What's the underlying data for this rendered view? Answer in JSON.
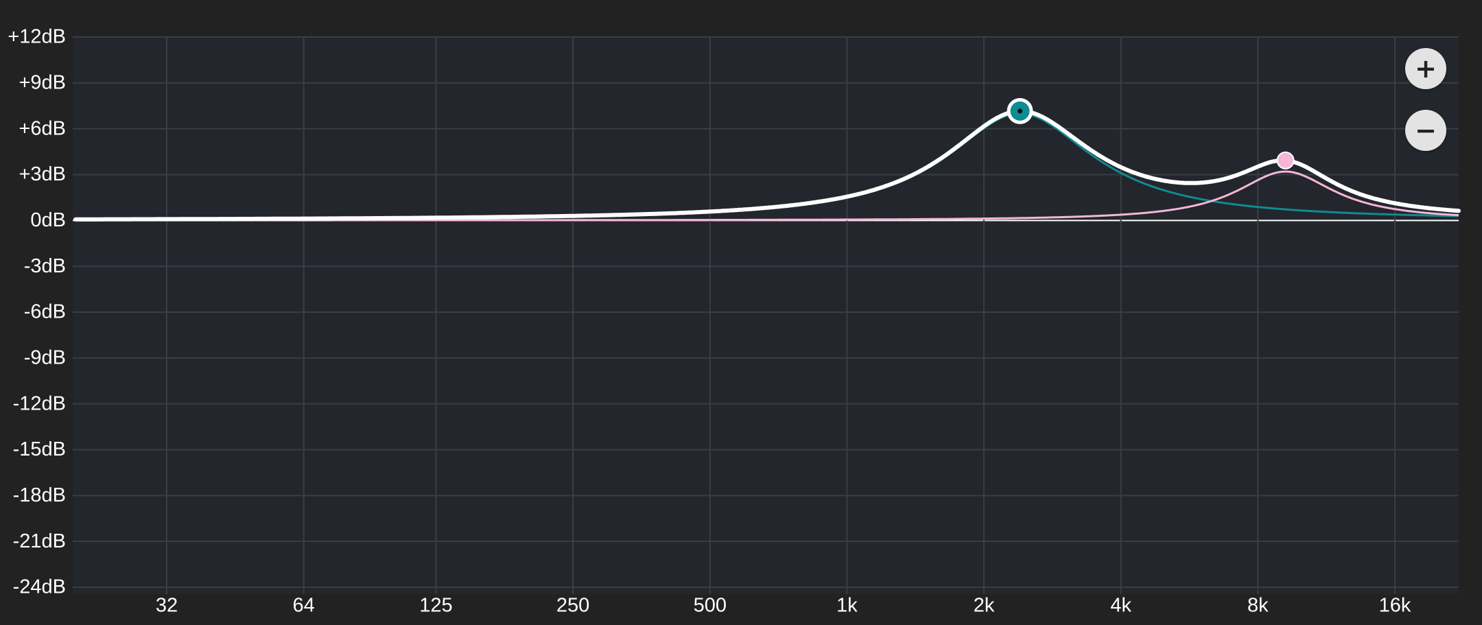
{
  "zoom": {
    "in_icon": "plus-icon",
    "in_glyph": "+",
    "out_icon": "minus-icon",
    "out_glyph": "−"
  },
  "colors": {
    "background": "#222222",
    "plot_bg": "#23262c",
    "grid": "#3a3e45",
    "zero_line": "#ffffff",
    "combined_curve": "#ffffff",
    "band1": "#0e8c92",
    "band2": "#f5b6d8",
    "button_bg": "#e3e3e3"
  },
  "chart_data": {
    "type": "line",
    "x_scale": "log",
    "y_unit": "dB",
    "ylim": [
      -24,
      12
    ],
    "xlim": [
      20,
      20000
    ],
    "y_ticks": [
      12,
      9,
      6,
      3,
      0,
      -3,
      -6,
      -9,
      -12,
      -15,
      -18,
      -21,
      -24
    ],
    "y_tick_labels": [
      "+12dB",
      "+9dB",
      "+6dB",
      "+3dB",
      "0dB",
      "-3dB",
      "-6dB",
      "-9dB",
      "-12dB",
      "-15dB",
      "-18dB",
      "-21dB",
      "-24dB"
    ],
    "x_ticks": [
      32,
      64,
      125,
      250,
      500,
      1000,
      2000,
      4000,
      8000,
      16000
    ],
    "x_tick_labels": [
      "32",
      "64",
      "125",
      "250",
      "500",
      "1k",
      "2k",
      "4k",
      "8k",
      "16k"
    ],
    "grid": true,
    "bands": [
      {
        "freq": 2400,
        "gain": 7,
        "q": 1.2,
        "color": "#0e8c92",
        "selected": true
      },
      {
        "freq": 9200,
        "gain": 3.2,
        "q": 1.8,
        "color": "#f5b6d8",
        "selected": false
      }
    ]
  }
}
